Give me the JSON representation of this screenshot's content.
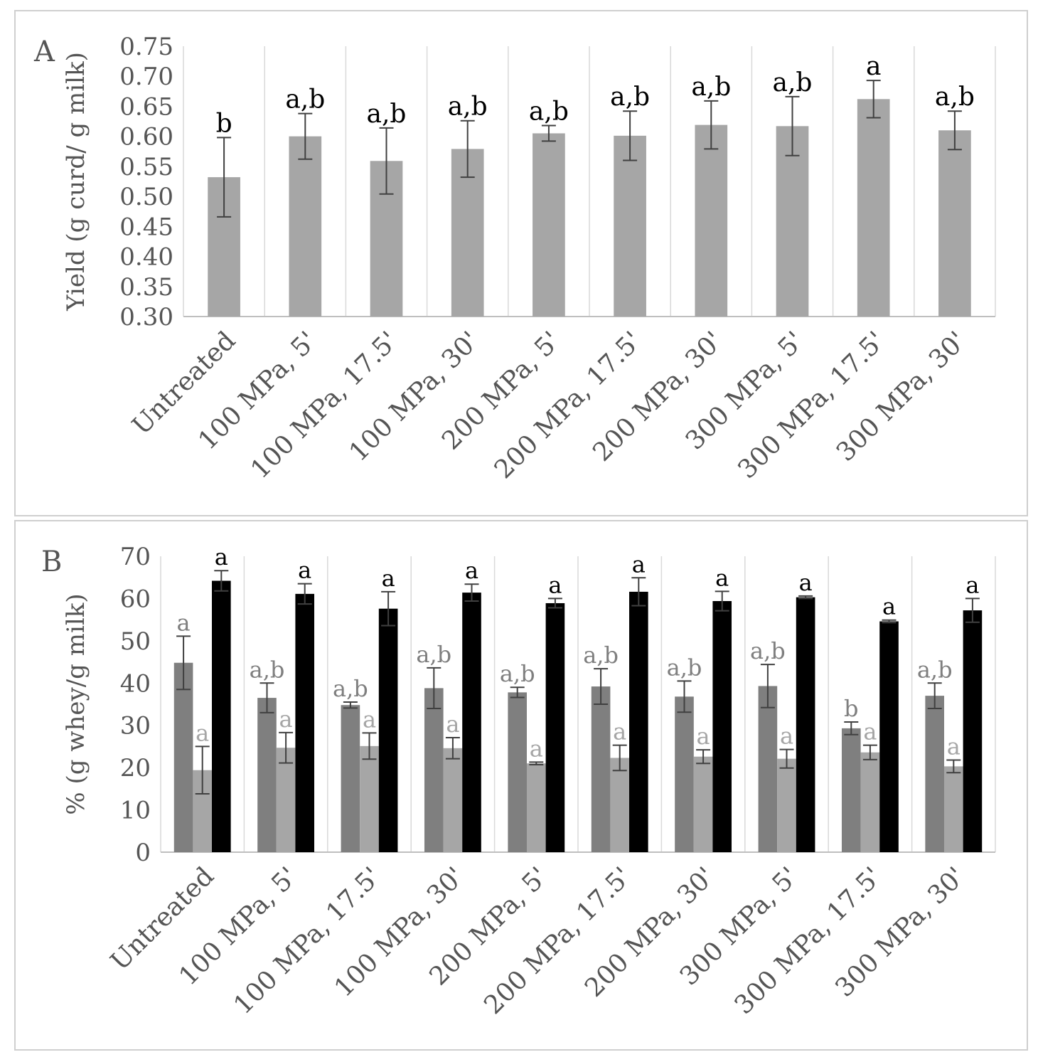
{
  "chart_data": [
    {
      "panel_letter": "A",
      "type": "bar",
      "ylabel": "Yield (g curd/ g milk)",
      "ylim": [
        0.3,
        0.75
      ],
      "y_ticks": [
        "0.30",
        "0.35",
        "0.40",
        "0.45",
        "0.50",
        "0.55",
        "0.60",
        "0.65",
        "0.70",
        "0.75"
      ],
      "grid": "vertical category separators",
      "categories": [
        "Untreated",
        "100 MPa, 5'",
        "100 MPa, 17.5'",
        "100 MPa, 30'",
        "200 MPa, 5'",
        "200 MPa, 17.5'",
        "200 MPa, 30'",
        "300 MPa, 5'",
        "300 MPa, 17.5'",
        "300 MPa, 30'"
      ],
      "series": [
        {
          "color": "#a6a6a6",
          "values": [
            0.532,
            0.6,
            0.559,
            0.579,
            0.605,
            0.601,
            0.619,
            0.617,
            0.662,
            0.61
          ],
          "errors": [
            0.066,
            0.038,
            0.055,
            0.047,
            0.013,
            0.041,
            0.04,
            0.049,
            0.031,
            0.032
          ],
          "letters": [
            "b",
            "a,b",
            "a,b",
            "a,b",
            "a,b",
            "a,b",
            "a,b",
            "a,b",
            "a",
            "a,b"
          ],
          "letter_color": "#000000"
        }
      ]
    },
    {
      "panel_letter": "B",
      "type": "bar",
      "ylabel": "% (g whey/g milk)",
      "ylim": [
        0,
        70
      ],
      "y_ticks": [
        "0",
        "10",
        "20",
        "30",
        "40",
        "50",
        "60",
        "70"
      ],
      "grid": "vertical category separators",
      "categories": [
        "Untreated",
        "100 MPa, 5'",
        "100 MPa, 17.5'",
        "100 MPa, 30'",
        "200 MPa, 5'",
        "200 MPa, 17.5'",
        "200 MPa, 30'",
        "300 MPa, 5'",
        "300 MPa, 17.5'",
        "300 MPa, 30'"
      ],
      "series": [
        {
          "color": "#7f7f7f",
          "values": [
            44.8,
            36.5,
            34.8,
            38.8,
            37.8,
            39.2,
            36.8,
            39.3,
            29.3,
            37.0
          ],
          "errors": [
            6.3,
            3.5,
            0.7,
            4.8,
            1.2,
            4.2,
            3.7,
            5.1,
            1.5,
            3.0
          ],
          "letters": [
            "a",
            "a,b",
            "a,b",
            "a,b",
            "a,b",
            "a,b",
            "a,b",
            "a,b",
            "b",
            "a,b"
          ],
          "letter_color": "#7f7f7f"
        },
        {
          "color": "#a6a6a6",
          "values": [
            19.4,
            24.7,
            25.1,
            24.6,
            21.0,
            22.3,
            22.6,
            22.1,
            23.6,
            20.3
          ],
          "errors": [
            5.6,
            3.6,
            3.1,
            2.5,
            0.3,
            3.0,
            1.6,
            2.2,
            1.7,
            1.5
          ],
          "letters": [
            "a",
            "a",
            "a",
            "a",
            "a",
            "a",
            "a",
            "a",
            "a",
            "a"
          ],
          "letter_color": "#a6a6a6"
        },
        {
          "color": "#000000",
          "values": [
            64.2,
            61.1,
            57.6,
            61.4,
            58.9,
            61.6,
            59.4,
            60.3,
            54.6,
            57.2
          ],
          "errors": [
            2.4,
            2.4,
            4.0,
            2.0,
            1.1,
            3.3,
            2.3,
            0.3,
            0.3,
            2.8
          ],
          "letters": [
            "a",
            "a",
            "a",
            "a",
            "a",
            "a",
            "a",
            "a",
            "a",
            "a"
          ],
          "letter_color": "#000000"
        }
      ]
    }
  ]
}
